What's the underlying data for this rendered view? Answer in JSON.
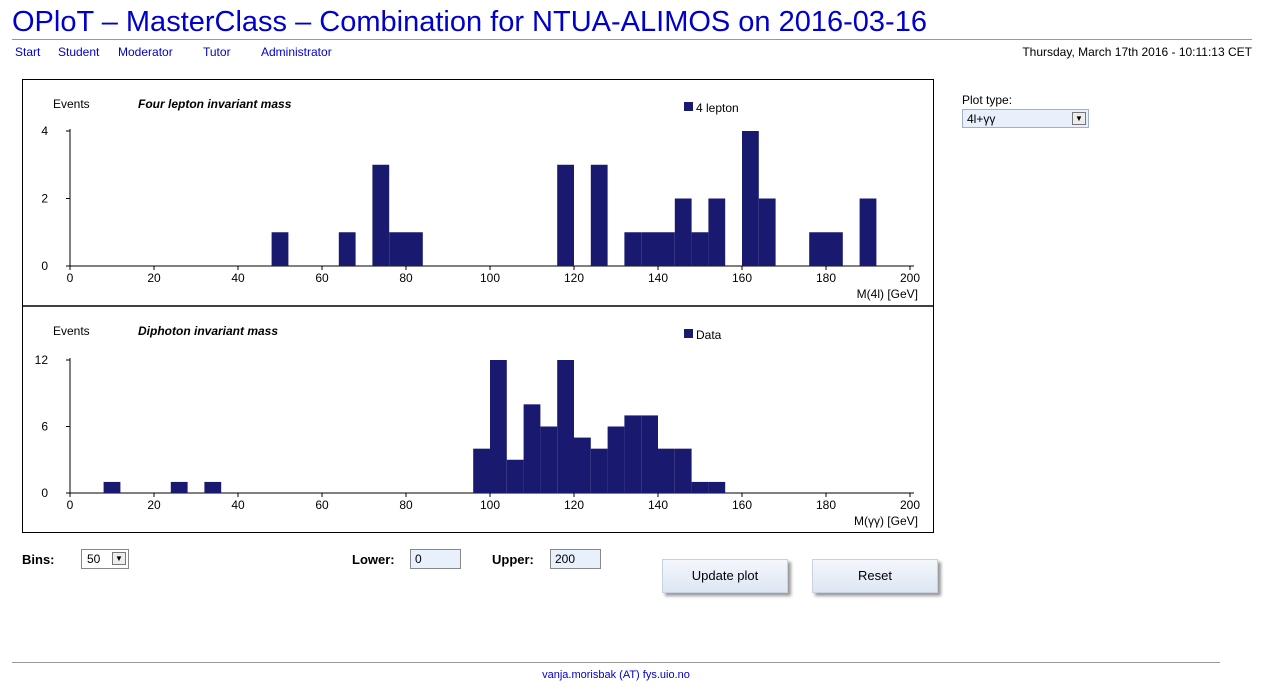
{
  "header": {
    "title": "OPloT – MasterClass – Combination for NTUA-ALIMOS on 2016-03-16",
    "datetime": "Thursday, March 17th 2016 - 10:11:13 CET"
  },
  "nav": {
    "items": [
      {
        "label": "Start"
      },
      {
        "label": "Student"
      },
      {
        "label": "Moderator"
      },
      {
        "label": "Tutor"
      },
      {
        "label": "Administrator"
      }
    ]
  },
  "plot_type": {
    "label": "Plot type:",
    "selected": "4l+γγ"
  },
  "controls": {
    "bins_label": "Bins:",
    "bins_value": "50",
    "lower_label": "Lower:",
    "lower_value": "0",
    "upper_label": "Upper:",
    "upper_value": "200",
    "update_label": "Update plot",
    "reset_label": "Reset"
  },
  "footer": {
    "contact": "vanja.morisbak (AT) fys.uio.no"
  },
  "colors": {
    "bar": "#191970",
    "title": "#0000cc"
  },
  "chart_data": [
    {
      "type": "bar",
      "title": "Four lepton invariant mass",
      "ylabel": "Events",
      "xlabel": "M(4l) [GeV]",
      "legend": "4 lepton",
      "xlim": [
        0,
        200
      ],
      "ylim": [
        0,
        4
      ],
      "xticks": [
        0,
        20,
        40,
        60,
        80,
        100,
        120,
        140,
        160,
        180,
        200
      ],
      "yticks": [
        0,
        2,
        4
      ],
      "bin_width": 4,
      "bins": [
        {
          "x": 48,
          "y": 1
        },
        {
          "x": 64,
          "y": 1
        },
        {
          "x": 72,
          "y": 3
        },
        {
          "x": 76,
          "y": 1
        },
        {
          "x": 80,
          "y": 1
        },
        {
          "x": 116,
          "y": 3
        },
        {
          "x": 124,
          "y": 3
        },
        {
          "x": 132,
          "y": 1
        },
        {
          "x": 136,
          "y": 1
        },
        {
          "x": 140,
          "y": 1
        },
        {
          "x": 144,
          "y": 2
        },
        {
          "x": 148,
          "y": 1
        },
        {
          "x": 152,
          "y": 2
        },
        {
          "x": 160,
          "y": 4
        },
        {
          "x": 164,
          "y": 2
        },
        {
          "x": 176,
          "y": 1
        },
        {
          "x": 180,
          "y": 1
        },
        {
          "x": 188,
          "y": 2
        }
      ]
    },
    {
      "type": "bar",
      "title": "Diphoton invariant mass",
      "ylabel": "Events",
      "xlabel": "M(γγ) [GeV]",
      "legend": "Data",
      "xlim": [
        0,
        200
      ],
      "ylim": [
        0,
        12
      ],
      "xticks": [
        0,
        20,
        40,
        60,
        80,
        100,
        120,
        140,
        160,
        180,
        200
      ],
      "yticks": [
        0,
        6,
        12
      ],
      "bin_width": 4,
      "bins": [
        {
          "x": 8,
          "y": 1
        },
        {
          "x": 24,
          "y": 1
        },
        {
          "x": 32,
          "y": 1
        },
        {
          "x": 96,
          "y": 4
        },
        {
          "x": 100,
          "y": 12
        },
        {
          "x": 104,
          "y": 3
        },
        {
          "x": 108,
          "y": 8
        },
        {
          "x": 112,
          "y": 6
        },
        {
          "x": 116,
          "y": 12
        },
        {
          "x": 120,
          "y": 5
        },
        {
          "x": 124,
          "y": 4
        },
        {
          "x": 128,
          "y": 6
        },
        {
          "x": 132,
          "y": 7
        },
        {
          "x": 136,
          "y": 7
        },
        {
          "x": 140,
          "y": 4
        },
        {
          "x": 144,
          "y": 4
        },
        {
          "x": 148,
          "y": 1
        },
        {
          "x": 152,
          "y": 1
        }
      ]
    }
  ]
}
